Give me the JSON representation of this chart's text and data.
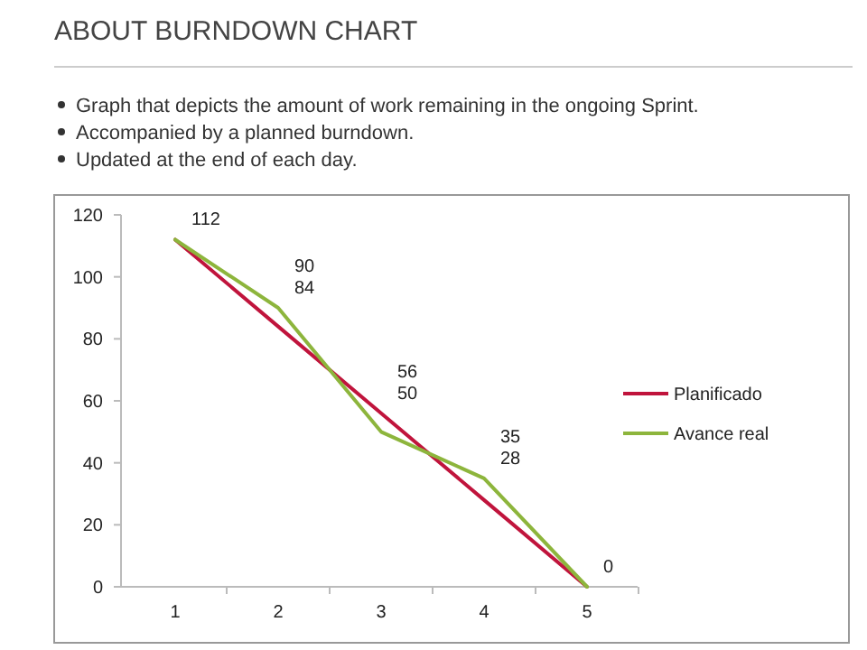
{
  "chart_data": {
    "type": "line",
    "title": "ABOUT BURNDOWN CHART",
    "annotations": [
      "Graph that depicts the amount of work remaining in the ongoing Sprint.",
      "Accompanied by a planned burndown.",
      "Updated at the end of each day."
    ],
    "categories": [
      "1",
      "2",
      "3",
      "4",
      "5"
    ],
    "series": [
      {
        "name": "Planificado",
        "color": "#c0143c",
        "values": [
          112,
          84,
          56,
          28,
          0
        ],
        "value_labels": [
          "112",
          "84",
          "56",
          "28",
          "0"
        ]
      },
      {
        "name": "Avance real",
        "color": "#8db53c",
        "values": [
          112,
          90,
          50,
          35,
          0
        ],
        "value_labels": [
          null,
          "90",
          "50",
          "35",
          null
        ]
      }
    ],
    "ylim": [
      0,
      120
    ],
    "yticks": [
      0,
      20,
      40,
      60,
      80,
      100,
      120
    ],
    "grid": false,
    "legend": "right",
    "marker": "none",
    "line_style": "solid"
  }
}
